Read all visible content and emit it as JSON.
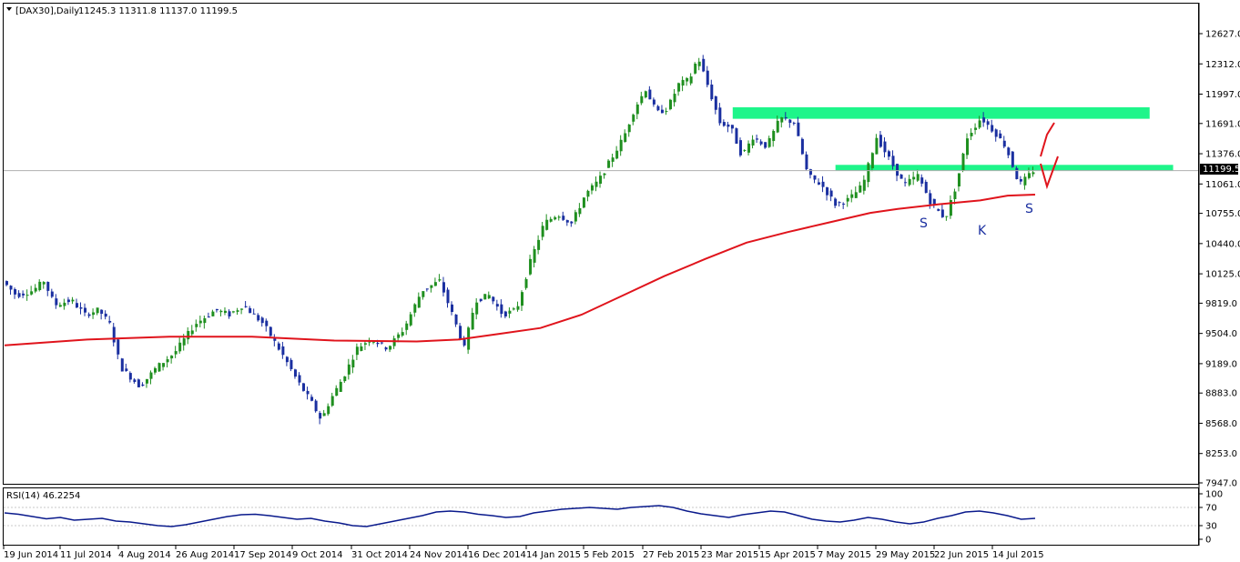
{
  "header": {
    "symbol": "[DAX30],Daily",
    "ohlc": "11245.3 11311.8 11137.0 11199.5"
  },
  "rsi_panel": {
    "label": "RSI(14) 46.2254"
  },
  "colors": {
    "bull": "#1f8f1f",
    "bear": "#1a2fa0",
    "ma": "#e0141c",
    "zone": "#1ef58a",
    "rsi": "#0a1a8c",
    "arrow": "#e0141c",
    "current_tag_bg": "#000000",
    "current_tag_fg": "#ffffff"
  },
  "chart_data": [
    {
      "type": "candlestick",
      "y_axis_ticks": [
        "12627.0",
        "12312.0",
        "11997.0",
        "11691.0",
        "11376.0",
        "11061.0",
        "10755.0",
        "10440.0",
        "10125.0",
        "9819.0",
        "9504.0",
        "9189.0",
        "8883.0",
        "8568.0",
        "8253.0",
        "7947.0"
      ],
      "ylim": [
        7947,
        12627
      ],
      "x_axis_labels": [
        "19 Jun 2014",
        "11 Jul 2014",
        "4 Aug 2014",
        "26 Aug 2014",
        "17 Sep 2014",
        "9 Oct 2014",
        "31 Oct 2014",
        "24 Nov 2014",
        "16 Dec 2014",
        "14 Jan 2015",
        "5 Feb 2015",
        "27 Feb 2015",
        "23 Mar 2015",
        "15 Apr 2015",
        "7 May 2015",
        "29 May 2015",
        "22 Jun 2015",
        "14 Jul 2015"
      ],
      "current_price": "11199.5",
      "price_path": [
        [
          0,
          10050
        ],
        [
          10,
          9900
        ],
        [
          22,
          9950
        ],
        [
          30,
          10050
        ],
        [
          38,
          9800
        ],
        [
          50,
          9850
        ],
        [
          60,
          9700
        ],
        [
          70,
          9750
        ],
        [
          78,
          9600
        ],
        [
          86,
          9150
        ],
        [
          100,
          8950
        ],
        [
          112,
          9150
        ],
        [
          125,
          9300
        ],
        [
          140,
          9600
        ],
        [
          155,
          9750
        ],
        [
          165,
          9700
        ],
        [
          175,
          9800
        ],
        [
          190,
          9600
        ],
        [
          205,
          9250
        ],
        [
          215,
          9000
        ],
        [
          225,
          8780
        ],
        [
          232,
          8600
        ],
        [
          238,
          8800
        ],
        [
          248,
          9050
        ],
        [
          258,
          9350
        ],
        [
          268,
          9450
        ],
        [
          280,
          9350
        ],
        [
          292,
          9550
        ],
        [
          305,
          9950
        ],
        [
          318,
          10050
        ],
        [
          326,
          9750
        ],
        [
          336,
          9350
        ],
        [
          344,
          9850
        ],
        [
          354,
          9900
        ],
        [
          364,
          9700
        ],
        [
          374,
          9750
        ],
        [
          384,
          10250
        ],
        [
          394,
          10650
        ],
        [
          404,
          10750
        ],
        [
          414,
          10650
        ],
        [
          424,
          10950
        ],
        [
          434,
          11100
        ],
        [
          444,
          11350
        ],
        [
          452,
          11550
        ],
        [
          460,
          11850
        ],
        [
          468,
          12050
        ],
        [
          476,
          11800
        ],
        [
          484,
          11850
        ],
        [
          492,
          12100
        ],
        [
          500,
          12150
        ],
        [
          506,
          12390
        ],
        [
          514,
          12050
        ],
        [
          522,
          11700
        ],
        [
          530,
          11650
        ],
        [
          538,
          11350
        ],
        [
          546,
          11550
        ],
        [
          556,
          11450
        ],
        [
          566,
          11750
        ],
        [
          576,
          11700
        ],
        [
          586,
          11150
        ],
        [
          596,
          11050
        ],
        [
          606,
          10850
        ],
        [
          616,
          10900
        ],
        [
          626,
          11050
        ],
        [
          636,
          11550
        ],
        [
          646,
          11300
        ],
        [
          656,
          11050
        ],
        [
          666,
          11150
        ],
        [
          676,
          10850
        ],
        [
          686,
          10700
        ],
        [
          694,
          11050
        ],
        [
          702,
          11550
        ],
        [
          712,
          11750
        ],
        [
          722,
          11600
        ],
        [
          730,
          11450
        ],
        [
          740,
          11050
        ],
        [
          750,
          11199.5
        ]
      ],
      "moving_average": [
        [
          0,
          9380
        ],
        [
          60,
          9440
        ],
        [
          120,
          9470
        ],
        [
          180,
          9470
        ],
        [
          240,
          9430
        ],
        [
          300,
          9420
        ],
        [
          330,
          9440
        ],
        [
          360,
          9500
        ],
        [
          390,
          9560
        ],
        [
          420,
          9700
        ],
        [
          450,
          9900
        ],
        [
          480,
          10100
        ],
        [
          510,
          10280
        ],
        [
          540,
          10450
        ],
        [
          570,
          10560
        ],
        [
          600,
          10660
        ],
        [
          630,
          10760
        ],
        [
          650,
          10800
        ],
        [
          680,
          10850
        ],
        [
          710,
          10890
        ],
        [
          730,
          10940
        ],
        [
          750,
          10950
        ]
      ],
      "horizontal_zones": [
        {
          "from_x": 496,
          "to_x": 780,
          "low": 11740,
          "high": 11860
        },
        {
          "from_x": 566,
          "to_x": 796,
          "low": 11200,
          "high": 11260
        }
      ],
      "pattern_labels": [
        "S",
        "K",
        "S"
      ]
    },
    {
      "type": "line",
      "name": "RSI(14) 46.2254",
      "y_axis_ticks": [
        "100",
        "70",
        "30",
        "0"
      ],
      "ylim": [
        0,
        100
      ],
      "values": [
        58,
        55,
        50,
        45,
        48,
        42,
        44,
        46,
        40,
        38,
        34,
        30,
        28,
        32,
        38,
        44,
        50,
        54,
        55,
        52,
        48,
        44,
        46,
        40,
        36,
        30,
        28,
        34,
        40,
        46,
        52,
        60,
        62,
        60,
        55,
        52,
        48,
        50,
        58,
        62,
        66,
        68,
        70,
        68,
        66,
        70,
        72,
        74,
        70,
        62,
        56,
        52,
        48,
        54,
        58,
        62,
        60,
        52,
        44,
        40,
        38,
        42,
        48,
        44,
        38,
        34,
        38,
        46,
        52,
        60,
        62,
        58,
        52,
        44,
        46
      ]
    }
  ]
}
